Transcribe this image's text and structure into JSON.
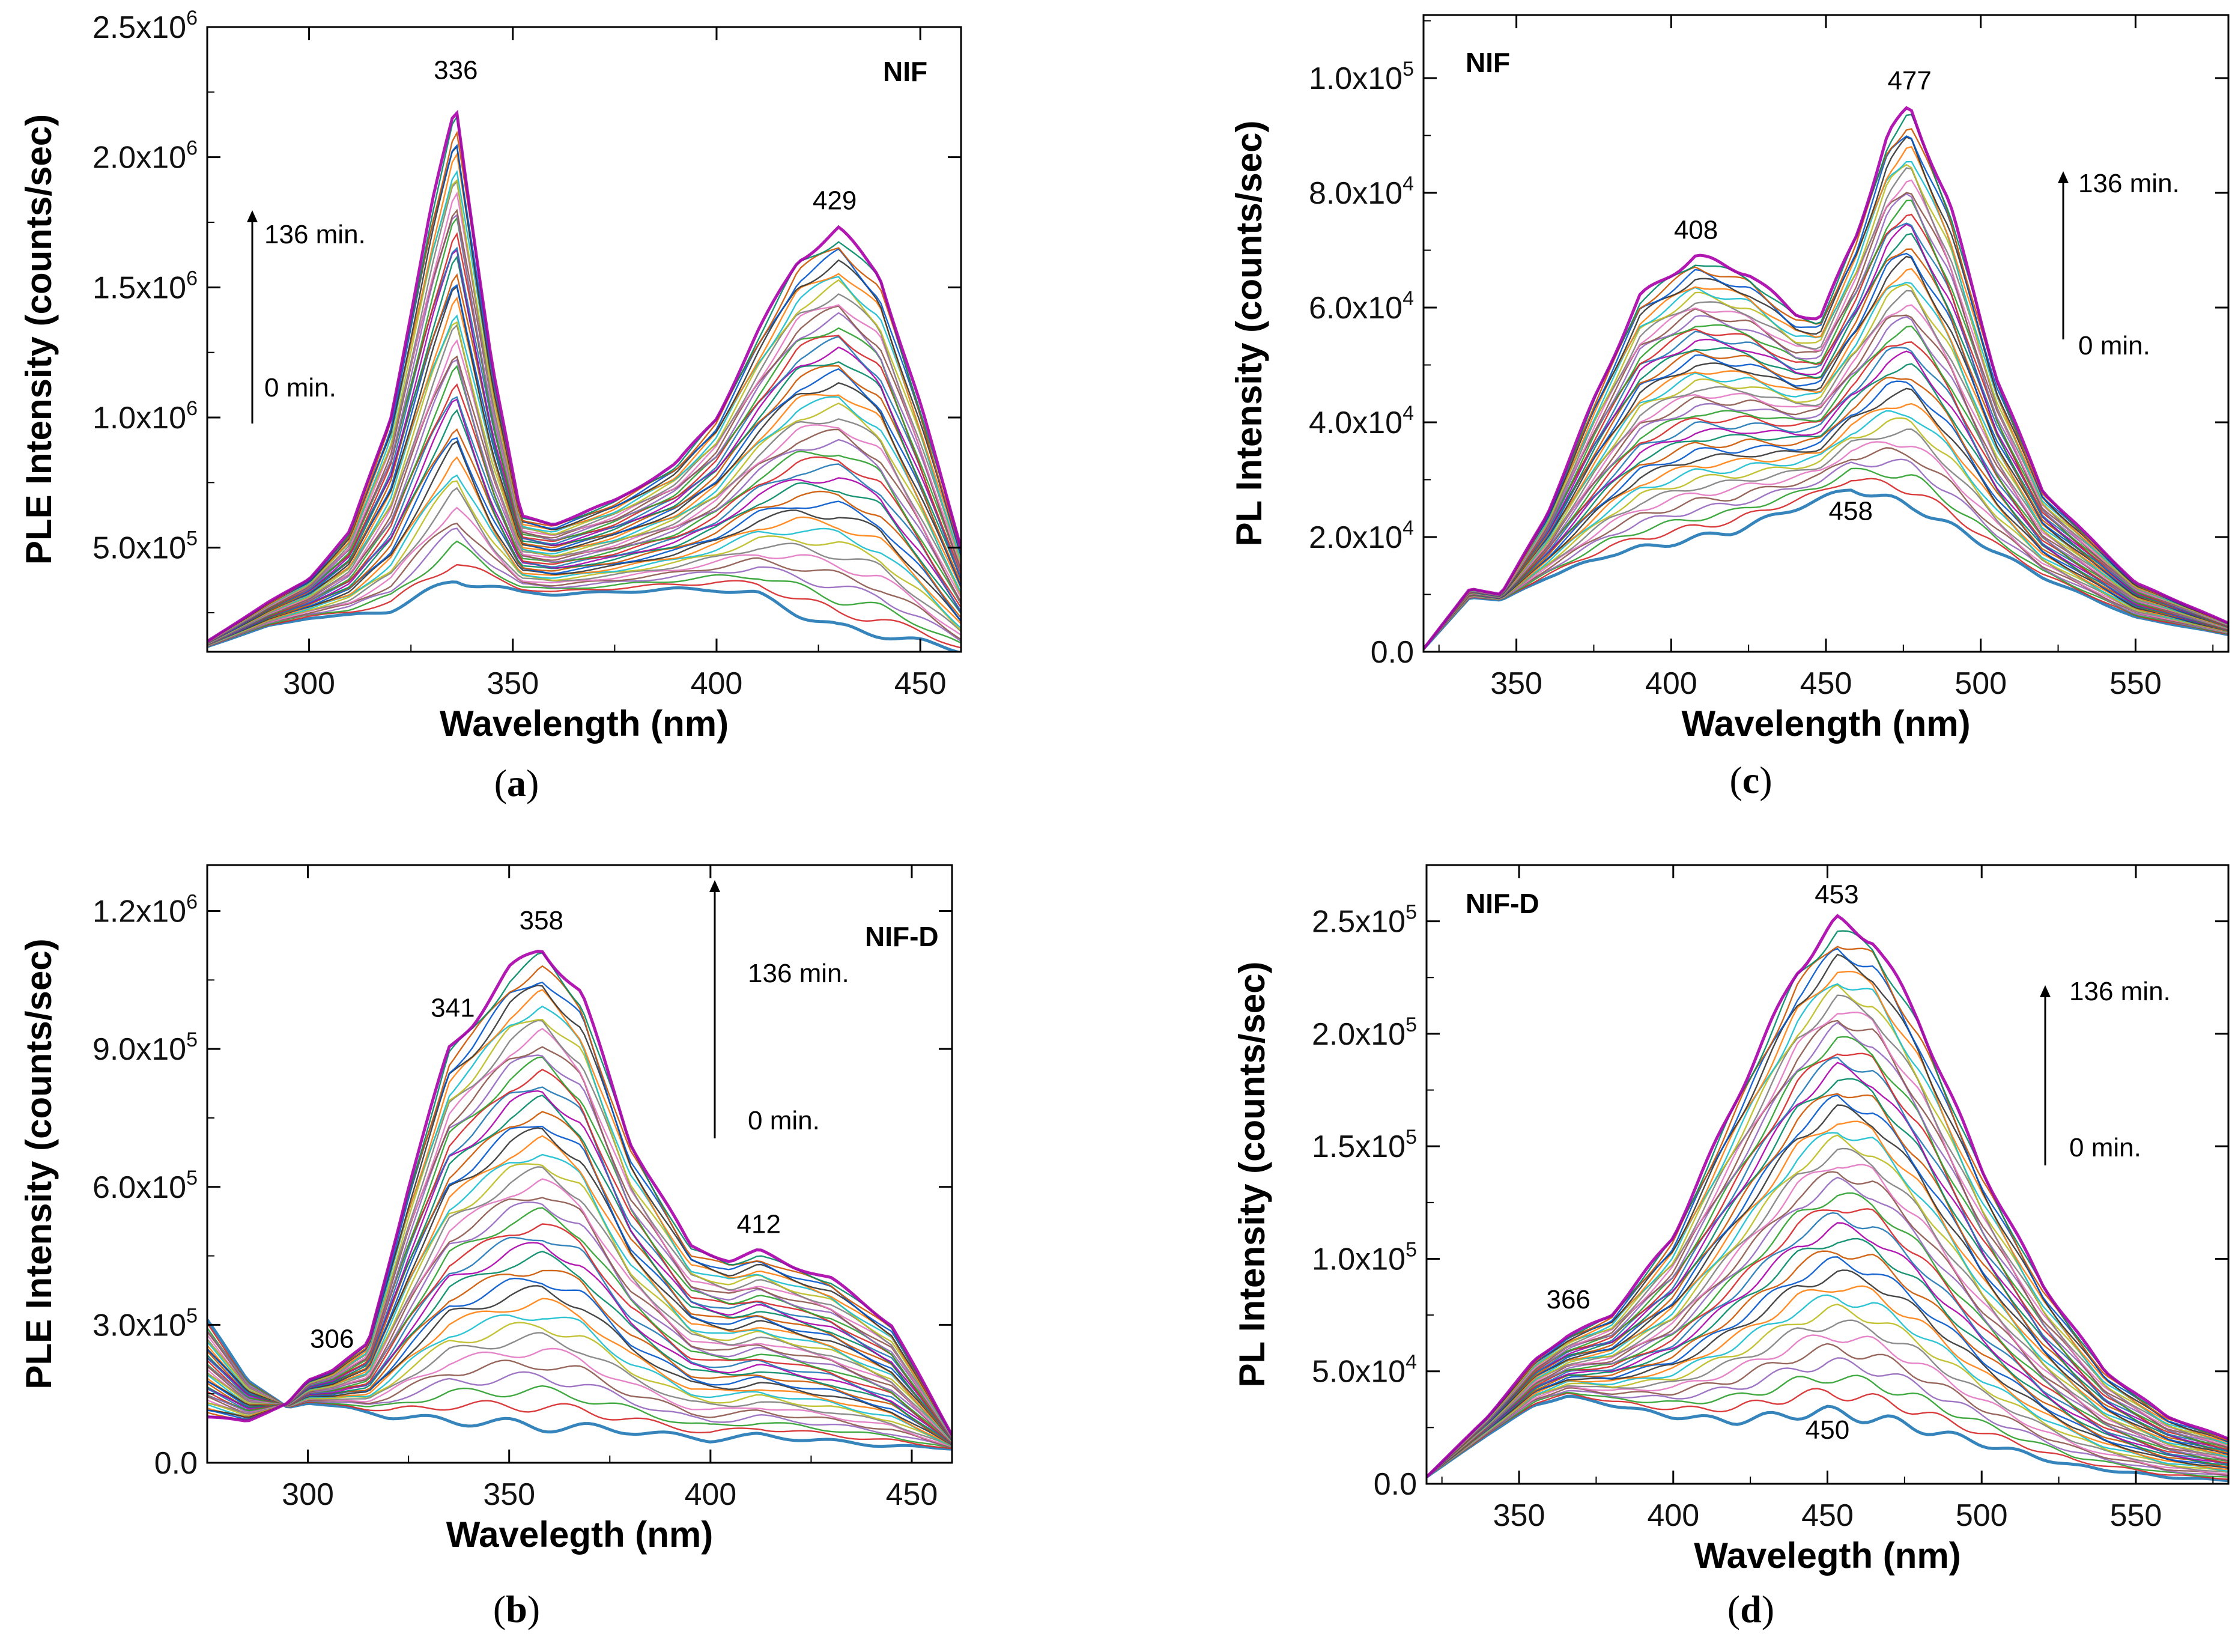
{
  "chart_data": [
    {
      "panel": "a",
      "type": "line",
      "series_label": "NIF",
      "xlabel": "Wavelength (nm)",
      "ylabel": "PLE Intensity (counts/sec)",
      "xlim": [
        275,
        460
      ],
      "ylim": [
        100000,
        2500000
      ],
      "xticks": [
        300,
        350,
        400,
        450
      ],
      "yticks": [
        500000,
        1000000,
        1500000,
        2000000,
        2500000
      ],
      "ytick_labels": [
        {
          "mant": "5.0x10",
          "exp": "5"
        },
        {
          "mant": "1.0x10",
          "exp": "6"
        },
        {
          "mant": "1.5x10",
          "exp": "6"
        },
        {
          "mant": "2.0x10",
          "exp": "6"
        },
        {
          "mant": "2.5x10",
          "exp": "6"
        }
      ],
      "time_arrow": {
        "start": "0 min.",
        "end": "136 min."
      },
      "peak_labels": [
        {
          "text": "336",
          "x": 336,
          "y": 2300000
        },
        {
          "text": "429",
          "x": 429,
          "y": 1800000
        }
      ],
      "envelope_lower": {
        "x": [
          275,
          290,
          300,
          310,
          320,
          330,
          336,
          345,
          352,
          360,
          375,
          390,
          400,
          410,
          420,
          430,
          440,
          450,
          460
        ],
        "y": [
          120000,
          200000,
          230000,
          240000,
          260000,
          330000,
          380000,
          350000,
          330000,
          320000,
          330000,
          340000,
          340000,
          320000,
          250000,
          190000,
          170000,
          140000,
          100000
        ]
      },
      "envelope_upper": {
        "x": [
          275,
          290,
          300,
          310,
          320,
          330,
          336,
          345,
          352,
          360,
          375,
          390,
          400,
          410,
          420,
          430,
          440,
          450,
          460
        ],
        "y": [
          140000,
          290000,
          380000,
          560000,
          1000000,
          1800000,
          2200000,
          1200000,
          620000,
          590000,
          680000,
          820000,
          1000000,
          1320000,
          1610000,
          1720000,
          1550000,
          1050000,
          500000
        ]
      }
    },
    {
      "panel": "b",
      "type": "line",
      "series_label": "NIF-D",
      "xlabel": "Wavelegth (nm)",
      "ylabel": "PLE Intensity (counts/sec)",
      "xlim": [
        275,
        460
      ],
      "ylim": [
        0,
        1300000
      ],
      "xticks": [
        300,
        350,
        400,
        450
      ],
      "yticks": [
        0,
        300000,
        600000,
        900000,
        1200000
      ],
      "ytick_labels": [
        {
          "mant": "0.0",
          "exp": ""
        },
        {
          "mant": "3.0x10",
          "exp": "5"
        },
        {
          "mant": "6.0x10",
          "exp": "5"
        },
        {
          "mant": "9.0x10",
          "exp": "5"
        },
        {
          "mant": "1.2x10",
          "exp": "6"
        }
      ],
      "time_arrow": {
        "start": "0 min.",
        "end": "136 min."
      },
      "peak_labels": [
        {
          "text": "358",
          "x": 358,
          "y": 1160000
        },
        {
          "text": "341",
          "x": 336,
          "y": 970000
        },
        {
          "text": "306",
          "x": 306,
          "y": 250000
        },
        {
          "text": "412",
          "x": 412,
          "y": 500000
        }
      ],
      "envelope_lower": {
        "x": [
          275,
          285,
          295,
          300,
          310,
          320,
          340,
          358,
          380,
          400,
          412,
          425,
          440,
          460
        ],
        "y": [
          310000,
          180000,
          120000,
          130000,
          120000,
          100000,
          90000,
          80000,
          70000,
          50000,
          60000,
          50000,
          40000,
          30000
        ]
      },
      "envelope_upper": {
        "x": [
          275,
          285,
          295,
          300,
          306,
          315,
          325,
          335,
          341,
          350,
          358,
          368,
          380,
          395,
          405,
          412,
          420,
          430,
          445,
          460
        ],
        "y": [
          100000,
          90000,
          130000,
          180000,
          200000,
          260000,
          600000,
          900000,
          960000,
          1070000,
          1120000,
          1020000,
          700000,
          470000,
          440000,
          460000,
          430000,
          400000,
          300000,
          60000
        ]
      }
    },
    {
      "panel": "c",
      "type": "line",
      "series_label": "NIF",
      "xlabel": "Wavelength (nm)",
      "ylabel": "PL Intensity (counts/sec)",
      "xlim": [
        320,
        580
      ],
      "ylim": [
        0,
        111000
      ],
      "xticks": [
        350,
        400,
        450,
        500,
        550
      ],
      "yticks": [
        0,
        20000,
        40000,
        60000,
        80000,
        100000
      ],
      "ytick_labels": [
        {
          "mant": "0.0",
          "exp": ""
        },
        {
          "mant": "2.0x10",
          "exp": "4"
        },
        {
          "mant": "4.0x10",
          "exp": "4"
        },
        {
          "mant": "6.0x10",
          "exp": "4"
        },
        {
          "mant": "8.0x10",
          "exp": "4"
        },
        {
          "mant": "1.0x10",
          "exp": "5"
        }
      ],
      "time_arrow": {
        "start": "0 min.",
        "end": "136 min."
      },
      "peak_labels": [
        {
          "text": "477",
          "x": 477,
          "y": 98000
        },
        {
          "text": "408",
          "x": 408,
          "y": 72000
        },
        {
          "text": "458",
          "x": 458,
          "y": 23000
        }
      ],
      "envelope_lower": {
        "x": [
          320,
          335,
          345,
          360,
          380,
          400,
          420,
          440,
          458,
          480,
          500,
          520,
          550,
          580
        ],
        "y": [
          500,
          9500,
          9000,
          13000,
          17000,
          19000,
          21000,
          25000,
          28500,
          25000,
          19000,
          13000,
          6000,
          3000
        ]
      },
      "envelope_upper": {
        "x": [
          320,
          335,
          345,
          360,
          375,
          390,
          408,
          425,
          440,
          448,
          460,
          470,
          477,
          490,
          505,
          520,
          550,
          580
        ],
        "y": [
          500,
          11000,
          10000,
          24000,
          44000,
          62000,
          69000,
          66000,
          59000,
          58000,
          73000,
          90000,
          95000,
          78000,
          48000,
          28000,
          12000,
          5000
        ]
      }
    },
    {
      "panel": "d",
      "type": "line",
      "series_label": "NIF-D",
      "xlabel": "Wavelegth (nm)",
      "ylabel": "PL Intensity (counts/sec)",
      "xlim": [
        320,
        580
      ],
      "ylim": [
        0,
        275000
      ],
      "xticks": [
        350,
        400,
        450,
        500,
        550
      ],
      "yticks": [
        0,
        50000,
        100000,
        150000,
        200000,
        250000
      ],
      "ytick_labels": [
        {
          "mant": "0.0",
          "exp": ""
        },
        {
          "mant": "5.0x10",
          "exp": "4"
        },
        {
          "mant": "1.0x10",
          "exp": "5"
        },
        {
          "mant": "1.5x10",
          "exp": "5"
        },
        {
          "mant": "2.0x10",
          "exp": "5"
        },
        {
          "mant": "2.5x10",
          "exp": "5"
        }
      ],
      "time_arrow": {
        "start": "0 min.",
        "end": "136 min."
      },
      "peak_labels": [
        {
          "text": "453",
          "x": 453,
          "y": 258000
        },
        {
          "text": "366",
          "x": 366,
          "y": 78000
        },
        {
          "text": "450",
          "x": 450,
          "y": 20000
        }
      ],
      "envelope_lower": {
        "x": [
          320,
          340,
          355,
          366,
          380,
          400,
          420,
          440,
          450,
          470,
          500,
          530,
          560,
          580
        ],
        "y": [
          3000,
          22000,
          35000,
          39000,
          35000,
          30000,
          28000,
          31000,
          32000,
          28000,
          18000,
          8000,
          3000,
          1500
        ]
      },
      "envelope_upper": {
        "x": [
          320,
          340,
          355,
          366,
          380,
          400,
          420,
          440,
          453,
          465,
          480,
          500,
          520,
          540,
          560,
          580
        ],
        "y": [
          3000,
          30000,
          55000,
          66000,
          75000,
          110000,
          170000,
          228000,
          250000,
          242000,
          205000,
          140000,
          88000,
          50000,
          30000,
          20000
        ]
      }
    }
  ],
  "panel_labels": [
    "(a)",
    "(b)",
    "(c)",
    "(d)"
  ]
}
